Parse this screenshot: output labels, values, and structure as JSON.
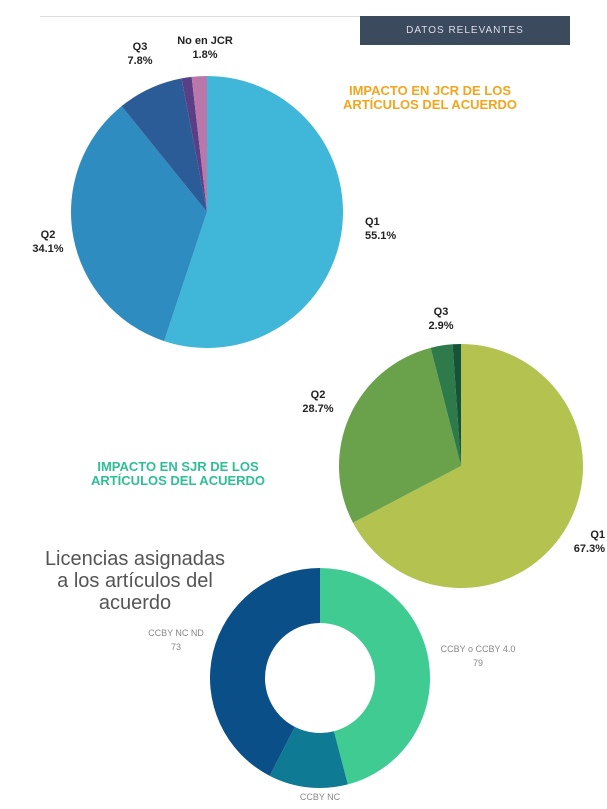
{
  "header": {
    "label": "DATOS RELEVANTES"
  },
  "chart_data": [
    {
      "type": "pie",
      "title": "IMPACTO EN JCR DE LOS ARTÍCULOS DEL ACUERDO",
      "categories": [
        "Q1",
        "Q2",
        "Q3",
        null,
        "No en JCR"
      ],
      "values": [
        55.1,
        34.1,
        7.8,
        1.2,
        1.8
      ],
      "value_labels": [
        "55.1%",
        "34.1%",
        "7.8%",
        null,
        "1.8%"
      ],
      "colors": [
        "#40b6d9",
        "#2f8cc0",
        "#2c5c98",
        "#5a3f86",
        "#b977aa"
      ],
      "title_color": "#f2a51d"
    },
    {
      "type": "pie",
      "title": "IMPACTO EN SJR DE LOS ARTÍCULOS DEL ACUERDO",
      "categories": [
        "Q1",
        "Q2",
        "Q3",
        null
      ],
      "values": [
        67.3,
        28.7,
        2.9,
        1.1
      ],
      "value_labels": [
        "67.3%",
        "28.7%",
        "2.9%",
        null
      ],
      "colors": [
        "#b4c34f",
        "#6aa24c",
        "#2f7a4b",
        "#15533a"
      ],
      "title_color": "#2fbf95"
    },
    {
      "type": "donut",
      "title": "Licencias asignadas a los artículos del acuerdo",
      "categories": [
        "CCBY o CCBY 4.0",
        "CCBY NC",
        "CCBY NC ND"
      ],
      "values": [
        79,
        20,
        73
      ],
      "value_labels": [
        "79",
        null,
        "73"
      ],
      "colors": [
        "#3fcb92",
        "#0f7a94",
        "#0b4f88"
      ],
      "title_color": "#555555"
    }
  ]
}
